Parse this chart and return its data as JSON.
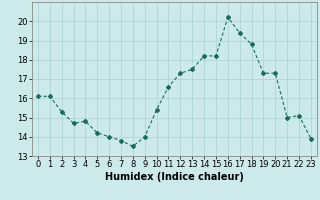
{
  "x": [
    0,
    1,
    2,
    3,
    4,
    5,
    6,
    7,
    8,
    9,
    10,
    11,
    12,
    13,
    14,
    15,
    16,
    17,
    18,
    19,
    20,
    21,
    22,
    23
  ],
  "y": [
    16.1,
    16.1,
    15.3,
    14.7,
    14.8,
    14.2,
    14.0,
    13.8,
    13.5,
    14.0,
    15.4,
    16.6,
    17.3,
    17.5,
    18.2,
    18.2,
    20.2,
    19.4,
    18.8,
    17.3,
    17.3,
    15.0,
    15.1,
    13.9
  ],
  "line_color": "#1a6b5e",
  "marker": "D",
  "marker_size": 2.0,
  "bg_color": "#cceaea",
  "grid_color": "#b0d4d4",
  "xlabel": "Humidex (Indice chaleur)",
  "ylim": [
    13,
    21
  ],
  "xlim": [
    -0.5,
    23.5
  ],
  "yticks": [
    13,
    14,
    15,
    16,
    17,
    18,
    19,
    20
  ],
  "xtick_labels": [
    "0",
    "1",
    "2",
    "3",
    "4",
    "5",
    "6",
    "7",
    "8",
    "9",
    "10",
    "11",
    "12",
    "13",
    "14",
    "15",
    "16",
    "17",
    "18",
    "19",
    "20",
    "21",
    "22",
    "23"
  ],
  "label_fontsize": 7,
  "tick_fontsize": 6
}
